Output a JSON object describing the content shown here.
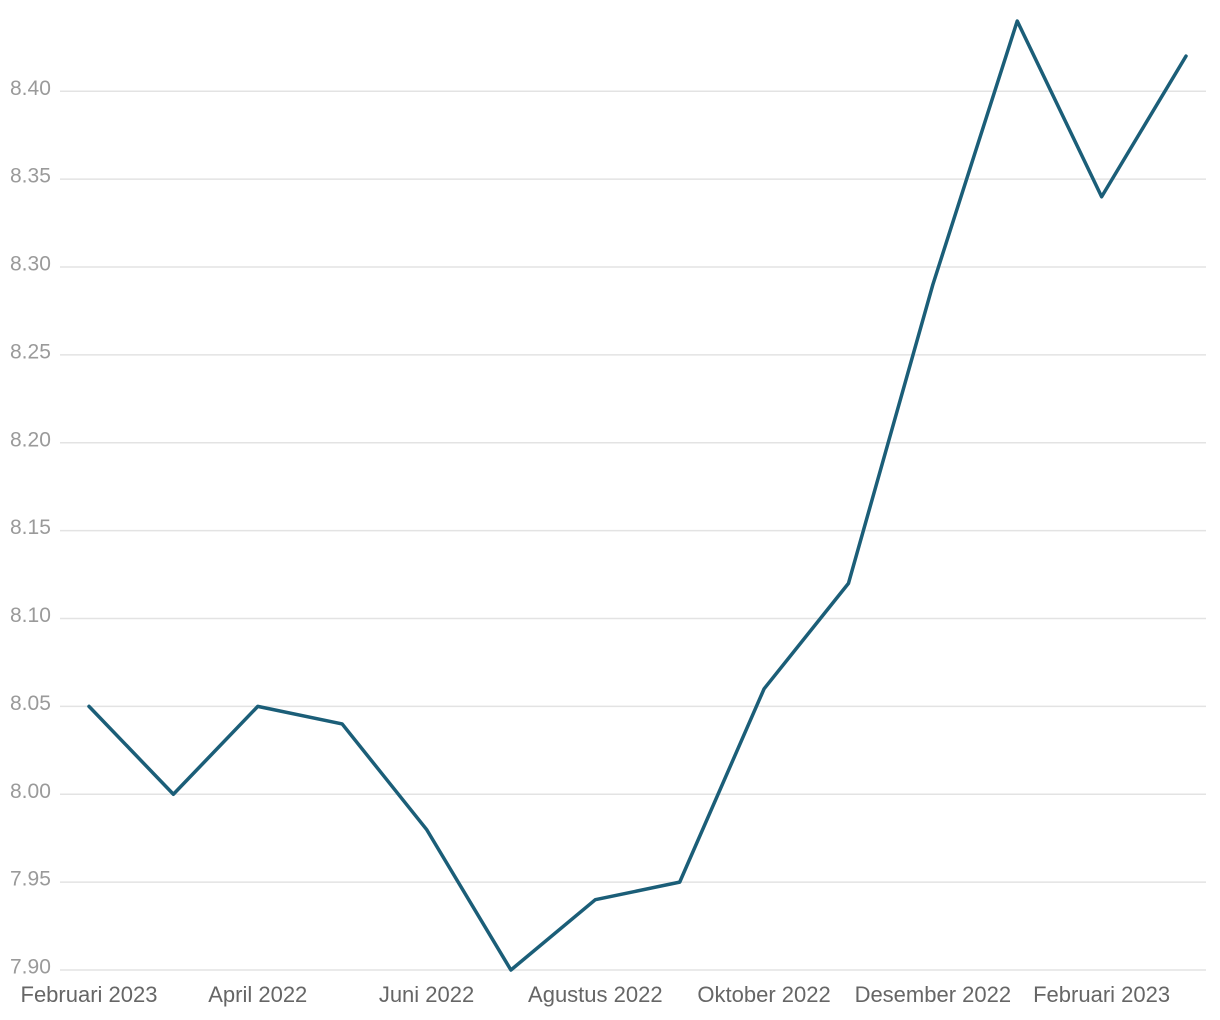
{
  "chart_data": {
    "type": "line",
    "categories": [
      "Februari 2023",
      null,
      "April 2022",
      null,
      "Juni 2022",
      null,
      "Agustus 2022",
      null,
      "Oktober 2022",
      null,
      "Desember 2022",
      null,
      "Februari 2023",
      null
    ],
    "values": [
      8.05,
      8.0,
      8.05,
      8.04,
      7.98,
      7.9,
      7.94,
      7.95,
      8.06,
      8.12,
      8.29,
      8.44,
      8.34,
      8.42
    ],
    "color": "#1b5e78",
    "ylim": [
      7.9,
      8.44
    ],
    "yticks": [
      {
        "value": 7.9,
        "label": "7.90"
      },
      7.95,
      {
        "value": 8.0,
        "label": "8.00"
      },
      8.05,
      {
        "value": 8.1,
        "label": "8.10"
      },
      8.15,
      {
        "value": 8.2,
        "label": "8.20"
      },
      8.25,
      {
        "value": 8.3,
        "label": "8.30"
      },
      8.35,
      {
        "value": 8.4,
        "label": "8.40"
      }
    ],
    "grid": true
  }
}
